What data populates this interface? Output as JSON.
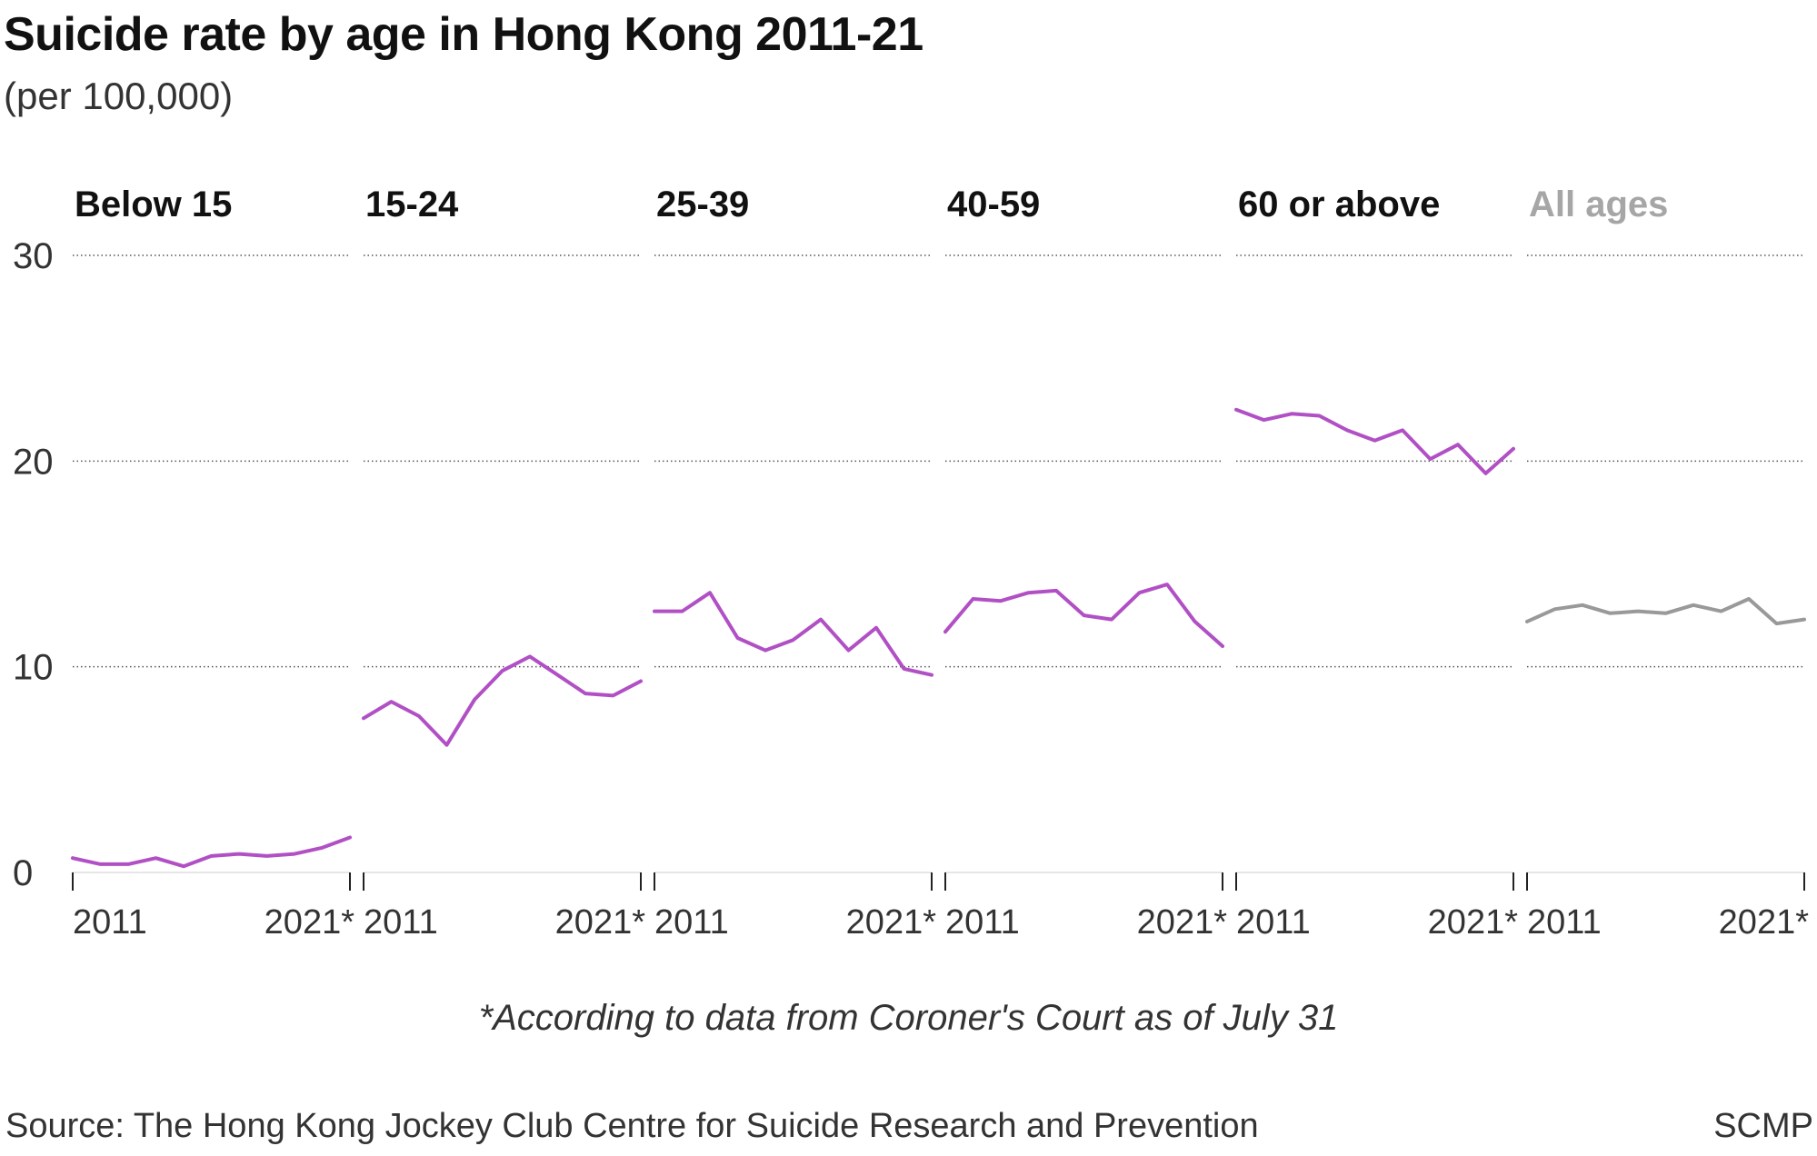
{
  "title": "Suicide rate by age in Hong Kong 2011-21",
  "subtitle": "(per 100,000)",
  "note": "*According to data from Coroner's Court as of July 31",
  "source": "Source: The Hong Kong Jockey Club Centre for Suicide Research and Prevention",
  "credit": "SCMP",
  "colors": {
    "highlight": "#b150c5",
    "all_ages": "#999999",
    "title_all_ages": "#a6a6a6",
    "grid": "#555555"
  },
  "chart_data": {
    "type": "line",
    "layout": "small-multiples",
    "ylim": [
      0,
      30
    ],
    "yticks": [
      0,
      10,
      20,
      30
    ],
    "x": [
      2011,
      2012,
      2013,
      2014,
      2015,
      2016,
      2017,
      2018,
      2019,
      2020,
      2021
    ],
    "xtick_labels": [
      "2011",
      "2021*"
    ],
    "series": [
      {
        "name": "Below 15",
        "values": [
          0.7,
          0.4,
          0.4,
          0.7,
          0.3,
          0.8,
          0.9,
          0.8,
          0.9,
          1.2,
          1.7
        ]
      },
      {
        "name": "15-24",
        "values": [
          7.5,
          8.3,
          7.6,
          6.2,
          8.4,
          9.8,
          10.5,
          9.6,
          8.7,
          8.6,
          9.3
        ]
      },
      {
        "name": "25-39",
        "values": [
          12.7,
          12.7,
          13.6,
          11.4,
          10.8,
          11.3,
          12.3,
          10.8,
          11.9,
          9.9,
          9.6
        ]
      },
      {
        "name": "40-59",
        "values": [
          11.7,
          13.3,
          13.2,
          13.6,
          13.7,
          12.5,
          12.3,
          13.6,
          14.0,
          12.2,
          11.0
        ]
      },
      {
        "name": "60 or above",
        "values": [
          22.5,
          22.0,
          22.3,
          22.2,
          21.5,
          21.0,
          21.5,
          20.1,
          20.8,
          19.4,
          20.6
        ]
      },
      {
        "name": "All ages",
        "values": [
          12.2,
          12.8,
          13.0,
          12.6,
          12.7,
          12.6,
          13.0,
          12.7,
          13.3,
          12.1,
          12.3
        ]
      }
    ]
  }
}
